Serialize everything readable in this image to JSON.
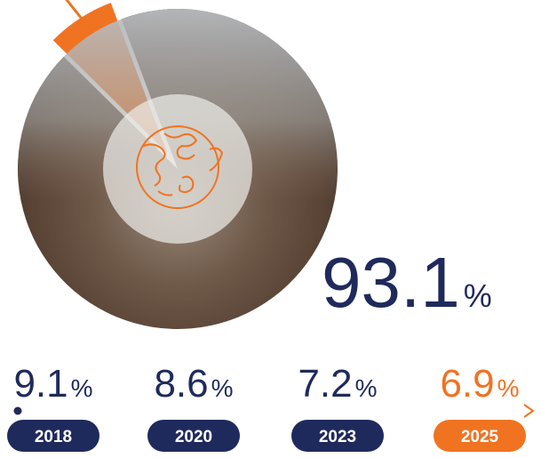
{
  "chart_data": {
    "type": "pie",
    "values": [
      93.1,
      6.9
    ],
    "colors": [
      "#7a6656",
      "#f07322"
    ],
    "unit": "%",
    "timeline": {
      "categories": [
        "2018",
        "2020",
        "2023",
        "2025"
      ],
      "values": [
        9.1,
        8.6,
        7.2,
        6.9
      ],
      "colors": [
        "#1f2a5c",
        "#1f2a5c",
        "#1f2a5c",
        "#f07322"
      ]
    }
  }
}
